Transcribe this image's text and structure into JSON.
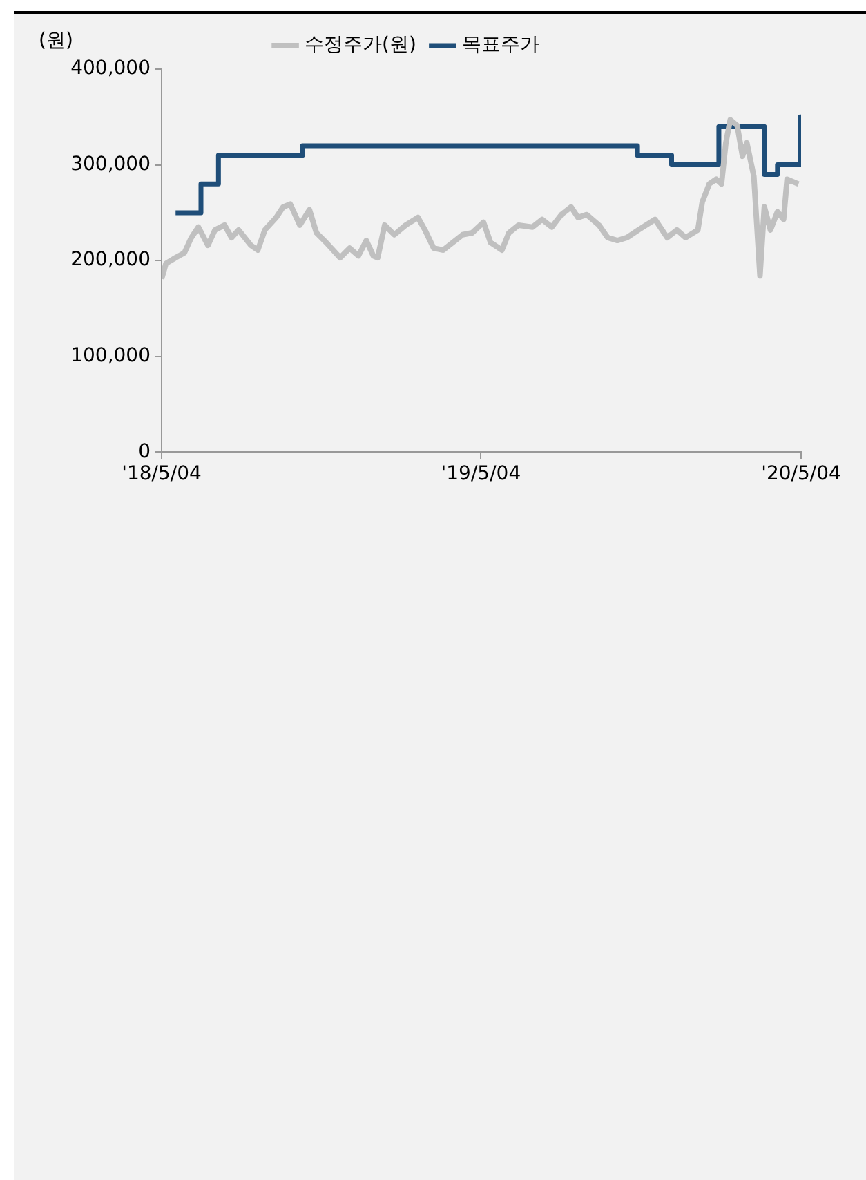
{
  "chart_data": {
    "type": "line",
    "ylabel": "(원)",
    "legend": "top",
    "grid": false,
    "marker": "none",
    "line_style": "solid",
    "xlim": [
      "2018-05-04",
      "2020-05-04"
    ],
    "xticks": [
      {
        "value": "2018-05-04",
        "label": "'18/5/04"
      },
      {
        "value": "2019-05-04",
        "label": "'19/5/04"
      },
      {
        "value": "2020-05-04",
        "label": "'20/5/04"
      }
    ],
    "ylim": [
      0,
      400000
    ],
    "yticks": [
      {
        "value": 0,
        "label": "0"
      },
      {
        "value": 100000,
        "label": "100,000"
      },
      {
        "value": 200000,
        "label": "200,000"
      },
      {
        "value": 300000,
        "label": "300,000"
      },
      {
        "value": 400000,
        "label": "400,000"
      }
    ],
    "series": [
      {
        "name": "수정주가(원)",
        "type": "line",
        "color": "#c0c0c0",
        "x": [
          "2018-05-04",
          "2018-05-09",
          "2018-05-20",
          "2018-05-30",
          "2018-06-07",
          "2018-06-15",
          "2018-06-26",
          "2018-07-04",
          "2018-07-15",
          "2018-07-23",
          "2018-07-31",
          "2018-08-14",
          "2018-08-22",
          "2018-08-30",
          "2018-09-12",
          "2018-09-20",
          "2018-09-28",
          "2018-10-09",
          "2018-10-20",
          "2018-10-28",
          "2018-11-08",
          "2018-11-24",
          "2018-12-05",
          "2018-12-15",
          "2018-12-24",
          "2019-01-01",
          "2019-01-06",
          "2019-01-14",
          "2019-01-25",
          "2019-02-07",
          "2019-02-21",
          "2019-03-01",
          "2019-03-11",
          "2019-03-22",
          "2019-04-13",
          "2019-04-24",
          "2019-05-07",
          "2019-05-15",
          "2019-05-28",
          "2019-06-05",
          "2019-06-16",
          "2019-07-02",
          "2019-07-13",
          "2019-07-24",
          "2019-08-04",
          "2019-08-15",
          "2019-08-23",
          "2019-09-02",
          "2019-09-16",
          "2019-09-26",
          "2019-10-07",
          "2019-10-18",
          "2019-10-31",
          "2019-11-19",
          "2019-12-03",
          "2019-12-14",
          "2019-12-24",
          "2020-01-07",
          "2020-01-12",
          "2020-01-20",
          "2020-01-28",
          "2020-02-03",
          "2020-02-08",
          "2020-02-13",
          "2020-02-21",
          "2020-02-27",
          "2020-03-03",
          "2020-03-11",
          "2020-03-18",
          "2020-03-23",
          "2020-03-30",
          "2020-04-07",
          "2020-04-14",
          "2020-04-18",
          "2020-05-01"
        ],
        "values": [
          181000,
          197000,
          203000,
          208000,
          224000,
          235000,
          216000,
          232000,
          237000,
          224000,
          232000,
          216000,
          211000,
          232000,
          245000,
          256000,
          259000,
          237000,
          253000,
          229000,
          219000,
          203000,
          213000,
          205000,
          221000,
          205000,
          203000,
          237000,
          227000,
          237000,
          245000,
          232000,
          213000,
          211000,
          227000,
          229000,
          240000,
          219000,
          211000,
          229000,
          237000,
          235000,
          243000,
          235000,
          248000,
          256000,
          245000,
          248000,
          237000,
          224000,
          221000,
          224000,
          232000,
          243000,
          224000,
          232000,
          224000,
          232000,
          261000,
          280000,
          285000,
          280000,
          323000,
          347000,
          341000,
          309000,
          323000,
          288000,
          184000,
          256000,
          232000,
          251000,
          243000,
          285000,
          280000
        ]
      },
      {
        "name": "목표주가",
        "type": "step",
        "color": "#1f4e79",
        "x": [
          "2018-05-20",
          "2018-06-18",
          "2018-07-08",
          "2018-10-12",
          "2019-10-30",
          "2019-12-08",
          "2020-01-31",
          "2020-03-23",
          "2020-04-07",
          "2020-05-03",
          "2020-05-04"
        ],
        "values": [
          250000,
          280000,
          310000,
          320000,
          310000,
          300000,
          340000,
          290000,
          300000,
          350000,
          350000
        ]
      }
    ]
  }
}
